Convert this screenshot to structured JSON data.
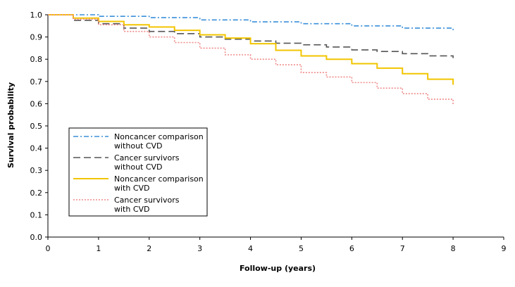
{
  "chart_data": {
    "type": "line",
    "title": "",
    "xlabel": "Follow-up (years)",
    "ylabel": "Survival probability",
    "xlim": [
      0,
      9
    ],
    "ylim": [
      0.0,
      1.0
    ],
    "x_ticks": [
      0,
      1,
      2,
      3,
      4,
      5,
      6,
      7,
      8,
      9
    ],
    "x_tick_labels": [
      "0",
      "1",
      "2",
      "3",
      "4",
      "5",
      "6",
      "7",
      "8",
      "9"
    ],
    "y_ticks": [
      0.0,
      0.1,
      0.2,
      0.3,
      0.4,
      0.5,
      0.6,
      0.7,
      0.8,
      0.9,
      1.0
    ],
    "y_tick_labels": [
      "0.0",
      "0.1",
      "0.2",
      "0.3",
      "0.4",
      "0.5",
      "0.6",
      "0.7",
      "0.8",
      "0.9",
      "1.0"
    ],
    "grid": false,
    "legend_position": "lower-left",
    "series": [
      {
        "name": "Noncancer comparison without CVD",
        "legend_lines": [
          "Noncancer comparison",
          "without CVD"
        ],
        "color": "#3a8fd9",
        "dash": "dash-dot",
        "x": [
          0,
          1,
          2,
          3,
          4,
          5,
          6,
          7,
          8
        ],
        "y": [
          1.0,
          0.993,
          0.987,
          0.977,
          0.968,
          0.96,
          0.95,
          0.94,
          0.926
        ]
      },
      {
        "name": "Cancer survivors without CVD",
        "legend_lines": [
          "Cancer survivors",
          "without CVD"
        ],
        "color": "#555555",
        "dash": "long-dash",
        "x": [
          0,
          0.5,
          1,
          1.5,
          2,
          2.5,
          3,
          3.5,
          4,
          4.5,
          5,
          5.5,
          6,
          6.5,
          7,
          7.5,
          8
        ],
        "y": [
          1.0,
          0.975,
          0.96,
          0.94,
          0.925,
          0.915,
          0.9,
          0.89,
          0.882,
          0.872,
          0.865,
          0.855,
          0.842,
          0.835,
          0.825,
          0.815,
          0.805
        ]
      },
      {
        "name": "Noncancer comparison with CVD",
        "legend_lines": [
          "Noncancer comparison",
          "with CVD"
        ],
        "color": "#f2c500",
        "dash": "solid",
        "x": [
          0,
          0.5,
          1,
          1.5,
          2,
          2.5,
          3,
          3.5,
          4,
          4.5,
          5,
          5.5,
          6,
          6.5,
          7,
          7.5,
          8
        ],
        "y": [
          1.0,
          0.985,
          0.97,
          0.955,
          0.945,
          0.93,
          0.91,
          0.895,
          0.87,
          0.84,
          0.815,
          0.8,
          0.78,
          0.76,
          0.735,
          0.71,
          0.685
        ]
      },
      {
        "name": "Cancer survivors with CVD",
        "legend_lines": [
          "Cancer survivors",
          "with CVD"
        ],
        "color": "#f08a8a",
        "dash": "dotted",
        "x": [
          0,
          0.5,
          1,
          1.5,
          2,
          2.5,
          3,
          3.5,
          4,
          4.5,
          5,
          5.5,
          6,
          6.5,
          7,
          7.5,
          8
        ],
        "y": [
          1.0,
          0.98,
          0.955,
          0.925,
          0.9,
          0.875,
          0.85,
          0.82,
          0.8,
          0.775,
          0.74,
          0.72,
          0.695,
          0.67,
          0.645,
          0.62,
          0.595
        ]
      }
    ]
  }
}
